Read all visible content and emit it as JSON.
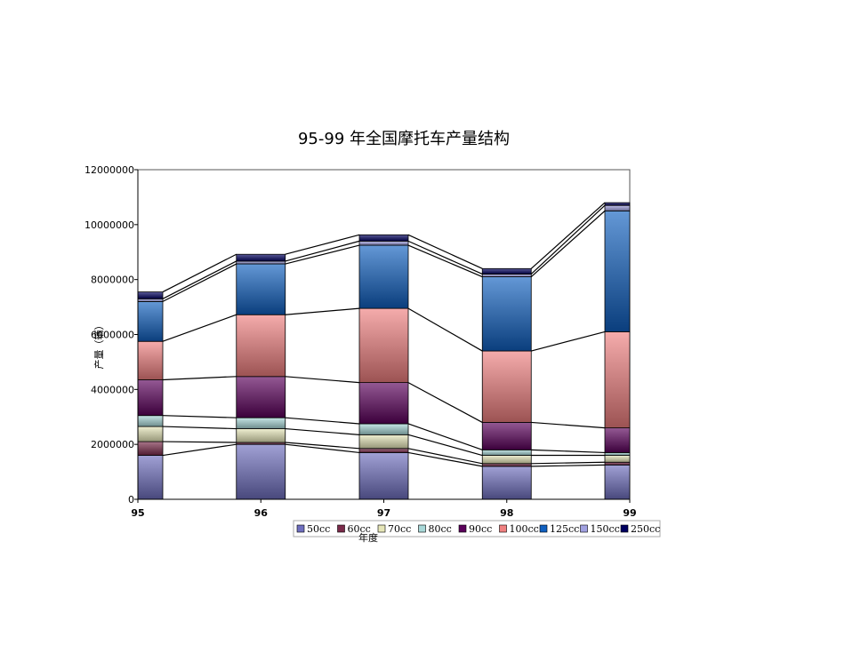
{
  "chart_data": {
    "type": "bar",
    "stacked": true,
    "title": "95-99 年全国摩托车产量结构",
    "xlabel": "年度",
    "ylabel": "产量（辆）",
    "categories": [
      "95",
      "96",
      "97",
      "98",
      "99"
    ],
    "ylim": [
      0,
      12000000
    ],
    "yticks": [
      "0",
      "2000000",
      "4000000",
      "6000000",
      "8000000",
      "10000000",
      "12000000"
    ],
    "legend_position": "bottom",
    "series": [
      {
        "name": "50cc",
        "color": "#6f6fbf",
        "values": [
          1600000,
          2000000,
          1700000,
          1200000,
          1250000
        ]
      },
      {
        "name": "60cc",
        "color": "#7a2a4a",
        "values": [
          500000,
          70000,
          150000,
          100000,
          100000
        ]
      },
      {
        "name": "70cc",
        "color": "#e6e6b8",
        "values": [
          550000,
          500000,
          500000,
          300000,
          250000
        ]
      },
      {
        "name": "80cc",
        "color": "#a8d8d8",
        "values": [
          400000,
          400000,
          400000,
          200000,
          100000
        ]
      },
      {
        "name": "90cc",
        "color": "#5a005a",
        "values": [
          1300000,
          1500000,
          1500000,
          1000000,
          900000
        ]
      },
      {
        "name": "100cc",
        "color": "#f08080",
        "values": [
          1400000,
          2250000,
          2700000,
          2600000,
          3500000
        ]
      },
      {
        "name": "125cc",
        "color": "#1060c0",
        "values": [
          1450000,
          1850000,
          2300000,
          2700000,
          4400000
        ]
      },
      {
        "name": "150cc",
        "color": "#a0a0e0",
        "values": [
          100000,
          100000,
          150000,
          100000,
          200000
        ]
      },
      {
        "name": "250cc",
        "color": "#000060",
        "values": [
          250000,
          250000,
          230000,
          200000,
          100000
        ]
      }
    ]
  }
}
